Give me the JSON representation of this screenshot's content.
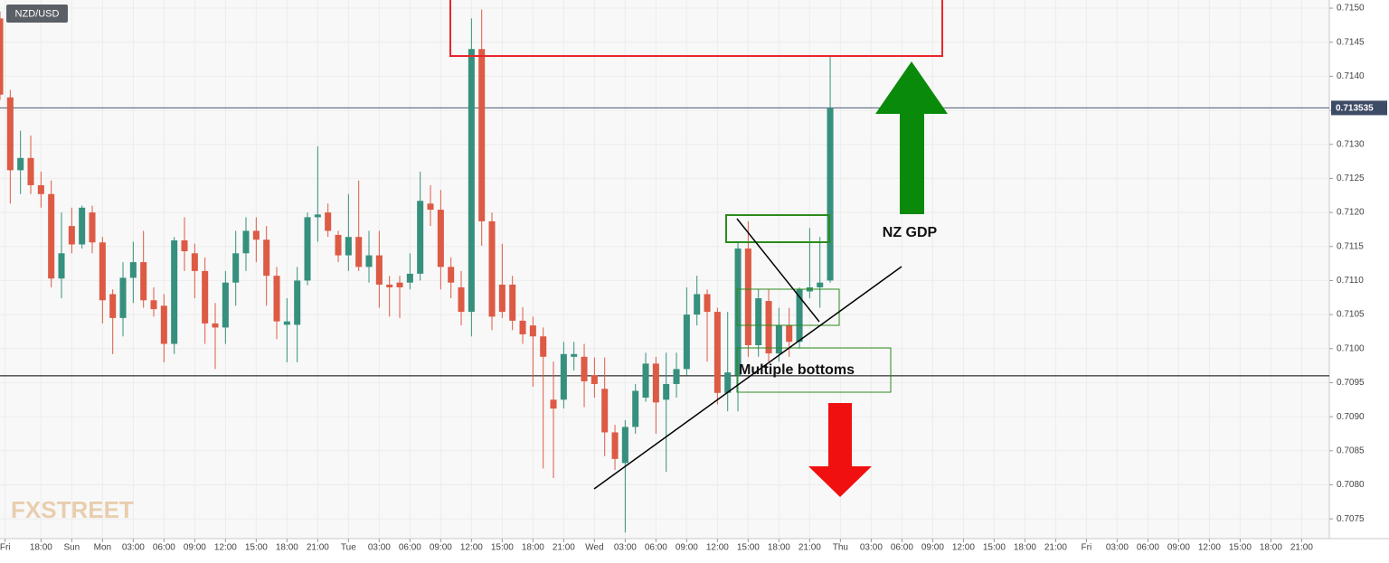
{
  "chart_data": {
    "type": "candlestick",
    "symbol": "NZD/USD",
    "watermark": "FXSTREET",
    "up_color": "#36907d",
    "down_color": "#dd5a45",
    "grid": true,
    "open": [
      0.71485,
      0.71369,
      0.71262,
      0.7128,
      0.7124,
      0.71227,
      0.71103,
      0.7118,
      0.71153,
      0.712,
      0.71156,
      0.7108,
      0.71045,
      0.71104,
      0.71127,
      0.71071,
      0.71063,
      0.71007,
      0.71159,
      0.7114,
      0.71114,
      0.71037,
      0.71031,
      0.71097,
      0.7114,
      0.71173,
      0.7116,
      0.71107,
      0.71035,
      0.71035,
      0.711,
      0.71193,
      0.712,
      0.71167,
      0.71137,
      0.71164,
      0.7112,
      0.71137,
      0.71094,
      0.71097,
      0.71097,
      0.7111,
      0.71213,
      0.71204,
      0.7112,
      0.7109,
      0.71054,
      0.7144,
      0.71187,
      0.71094,
      0.71094,
      0.71041,
      0.71034,
      0.71018,
      0.70925,
      0.70925,
      0.70988,
      0.70988,
      0.70961,
      0.70941,
      0.70877,
      0.70832,
      0.70885,
      0.70928,
      0.70978,
      0.70925,
      0.70948,
      0.7097,
      0.7105,
      0.7108,
      0.71054,
      0.70935,
      0.70961,
      0.71147,
      0.71005,
      0.7107,
      0.70993,
      0.71034,
      0.7101,
      0.71084,
      0.7109,
      0.711
    ],
    "high": [
      0.71495,
      0.7138,
      0.7132,
      0.71313,
      0.7126,
      0.71247,
      0.712,
      0.71207,
      0.7121,
      0.7121,
      0.71164,
      0.71087,
      0.71127,
      0.71157,
      0.71173,
      0.7109,
      0.7108,
      0.71164,
      0.71193,
      0.71154,
      0.71134,
      0.71067,
      0.71114,
      0.71173,
      0.71193,
      0.71193,
      0.7118,
      0.7112,
      0.71074,
      0.7112,
      0.712,
      0.71297,
      0.71213,
      0.71173,
      0.71227,
      0.71247,
      0.71173,
      0.71173,
      0.71107,
      0.71107,
      0.7114,
      0.7126,
      0.7124,
      0.71233,
      0.71134,
      0.71114,
      0.71485,
      0.71498,
      0.712,
      0.71154,
      0.71107,
      0.71061,
      0.71047,
      0.71031,
      0.70981,
      0.7101,
      0.7101,
      0.71007,
      0.70987,
      0.70987,
      0.70888,
      0.70895,
      0.70948,
      0.70994,
      0.70988,
      0.70994,
      0.70994,
      0.7109,
      0.71107,
      0.71087,
      0.7106,
      0.71054,
      0.71156,
      0.71187,
      0.71087,
      0.71087,
      0.7106,
      0.7106,
      0.7109,
      0.71177,
      0.71164,
      0.7143
    ],
    "low": [
      0.71365,
      0.71213,
      0.71227,
      0.71227,
      0.71207,
      0.7109,
      0.71074,
      0.7114,
      0.71147,
      0.7114,
      0.71037,
      0.70992,
      0.71018,
      0.71067,
      0.7106,
      0.71047,
      0.7098,
      0.70992,
      0.71114,
      0.71074,
      0.71007,
      0.7097,
      0.71007,
      0.71063,
      0.71114,
      0.71127,
      0.71063,
      0.71014,
      0.7098,
      0.7098,
      0.71093,
      0.71157,
      0.71164,
      0.71127,
      0.71114,
      0.71114,
      0.71097,
      0.7106,
      0.71047,
      0.71045,
      0.71087,
      0.711,
      0.7118,
      0.71087,
      0.71074,
      0.71034,
      0.71018,
      0.71151,
      0.71027,
      0.71045,
      0.71027,
      0.71007,
      0.70944,
      0.70824,
      0.7081,
      0.70912,
      0.70968,
      0.70914,
      0.70928,
      0.70842,
      0.70822,
      0.7073,
      0.70875,
      0.70922,
      0.70875,
      0.70819,
      0.70928,
      0.70961,
      0.71034,
      0.70981,
      0.70918,
      0.70908,
      0.70908,
      0.70988,
      0.70988,
      0.70981,
      0.70981,
      0.70988,
      0.71,
      0.71074,
      0.7106,
      0.71097
    ],
    "close": [
      0.71373,
      0.71262,
      0.7128,
      0.7124,
      0.71227,
      0.71103,
      0.7114,
      0.71153,
      0.71207,
      0.71156,
      0.71071,
      0.71045,
      0.71104,
      0.71127,
      0.71071,
      0.71058,
      0.71007,
      0.71159,
      0.71143,
      0.71114,
      0.71037,
      0.71031,
      0.71097,
      0.7114,
      0.71173,
      0.7116,
      0.71107,
      0.7104,
      0.7104,
      0.711,
      0.71193,
      0.71197,
      0.71173,
      0.71137,
      0.71164,
      0.7112,
      0.71137,
      0.71094,
      0.7109,
      0.7109,
      0.7111,
      0.71217,
      0.71204,
      0.7112,
      0.71097,
      0.71054,
      0.7144,
      0.71187,
      0.71047,
      0.71054,
      0.71041,
      0.71021,
      0.71018,
      0.70988,
      0.70912,
      0.70992,
      0.70992,
      0.70952,
      0.70948,
      0.70877,
      0.70838,
      0.70885,
      0.70938,
      0.70978,
      0.70921,
      0.70948,
      0.7097,
      0.7105,
      0.7108,
      0.71054,
      0.70935,
      0.70965,
      0.71147,
      0.71005,
      0.71074,
      0.70993,
      0.71034,
      0.7101,
      0.71087,
      0.7109,
      0.71097,
      0.71353
    ],
    "xlim": [
      0,
      129.7
    ],
    "xticks": [
      {
        "value": 0.5,
        "label": "Fri"
      },
      {
        "value": 4,
        "label": "18:00"
      },
      {
        "value": 7,
        "label": "Sun"
      },
      {
        "value": 10,
        "label": "Mon"
      },
      {
        "value": 13,
        "label": "03:00"
      },
      {
        "value": 16,
        "label": "06:00"
      },
      {
        "value": 19,
        "label": "09:00"
      },
      {
        "value": 22,
        "label": "12:00"
      },
      {
        "value": 25,
        "label": "15:00"
      },
      {
        "value": 28,
        "label": "18:00"
      },
      {
        "value": 31,
        "label": "21:00"
      },
      {
        "value": 34,
        "label": "Tue"
      },
      {
        "value": 37,
        "label": "03:00"
      },
      {
        "value": 40,
        "label": "06:00"
      },
      {
        "value": 43,
        "label": "09:00"
      },
      {
        "value": 46,
        "label": "12:00"
      },
      {
        "value": 49,
        "label": "15:00"
      },
      {
        "value": 52,
        "label": "18:00"
      },
      {
        "value": 55,
        "label": "21:00"
      },
      {
        "value": 58,
        "label": "Wed"
      },
      {
        "value": 61,
        "label": "03:00"
      },
      {
        "value": 64,
        "label": "06:00"
      },
      {
        "value": 67,
        "label": "09:00"
      },
      {
        "value": 70,
        "label": "12:00"
      },
      {
        "value": 73,
        "label": "15:00"
      },
      {
        "value": 76,
        "label": "18:00"
      },
      {
        "value": 79,
        "label": "21:00"
      },
      {
        "value": 82,
        "label": "Thu"
      },
      {
        "value": 85,
        "label": "03:00"
      },
      {
        "value": 88,
        "label": "06:00"
      },
      {
        "value": 91,
        "label": "09:00"
      },
      {
        "value": 94,
        "label": "12:00"
      },
      {
        "value": 97,
        "label": "15:00"
      },
      {
        "value": 100,
        "label": "18:00"
      },
      {
        "value": 103,
        "label": "21:00"
      },
      {
        "value": 106,
        "label": "Fri"
      },
      {
        "value": 109,
        "label": "03:00"
      },
      {
        "value": 112,
        "label": "06:00"
      },
      {
        "value": 115,
        "label": "09:00"
      },
      {
        "value": 118,
        "label": "12:00"
      },
      {
        "value": 121,
        "label": "15:00"
      },
      {
        "value": 124,
        "label": "18:00"
      },
      {
        "value": 127,
        "label": "21:00"
      }
    ],
    "ylim": [
      0.70721,
      0.71512
    ],
    "yticks": [
      {
        "value": 0.715,
        "label": "0.7150"
      },
      0.7145,
      {
        "value": 0.714,
        "label": "0.7140"
      },
      0.7135,
      {
        "value": 0.713,
        "label": "0.7130"
      },
      0.7125,
      {
        "value": 0.712,
        "label": "0.7120"
      },
      0.7115,
      {
        "value": 0.711,
        "label": "0.7110"
      },
      0.7105,
      {
        "value": 0.71,
        "label": "0.7100"
      },
      0.7095,
      {
        "value": 0.709,
        "label": "0.7090"
      },
      0.7085,
      {
        "value": 0.708,
        "label": "0.7080"
      },
      0.7075
    ],
    "last_price": 0.713535,
    "support": 0.7096,
    "annotations": [
      "NZ GDP",
      "Multiple bottoms"
    ]
  }
}
